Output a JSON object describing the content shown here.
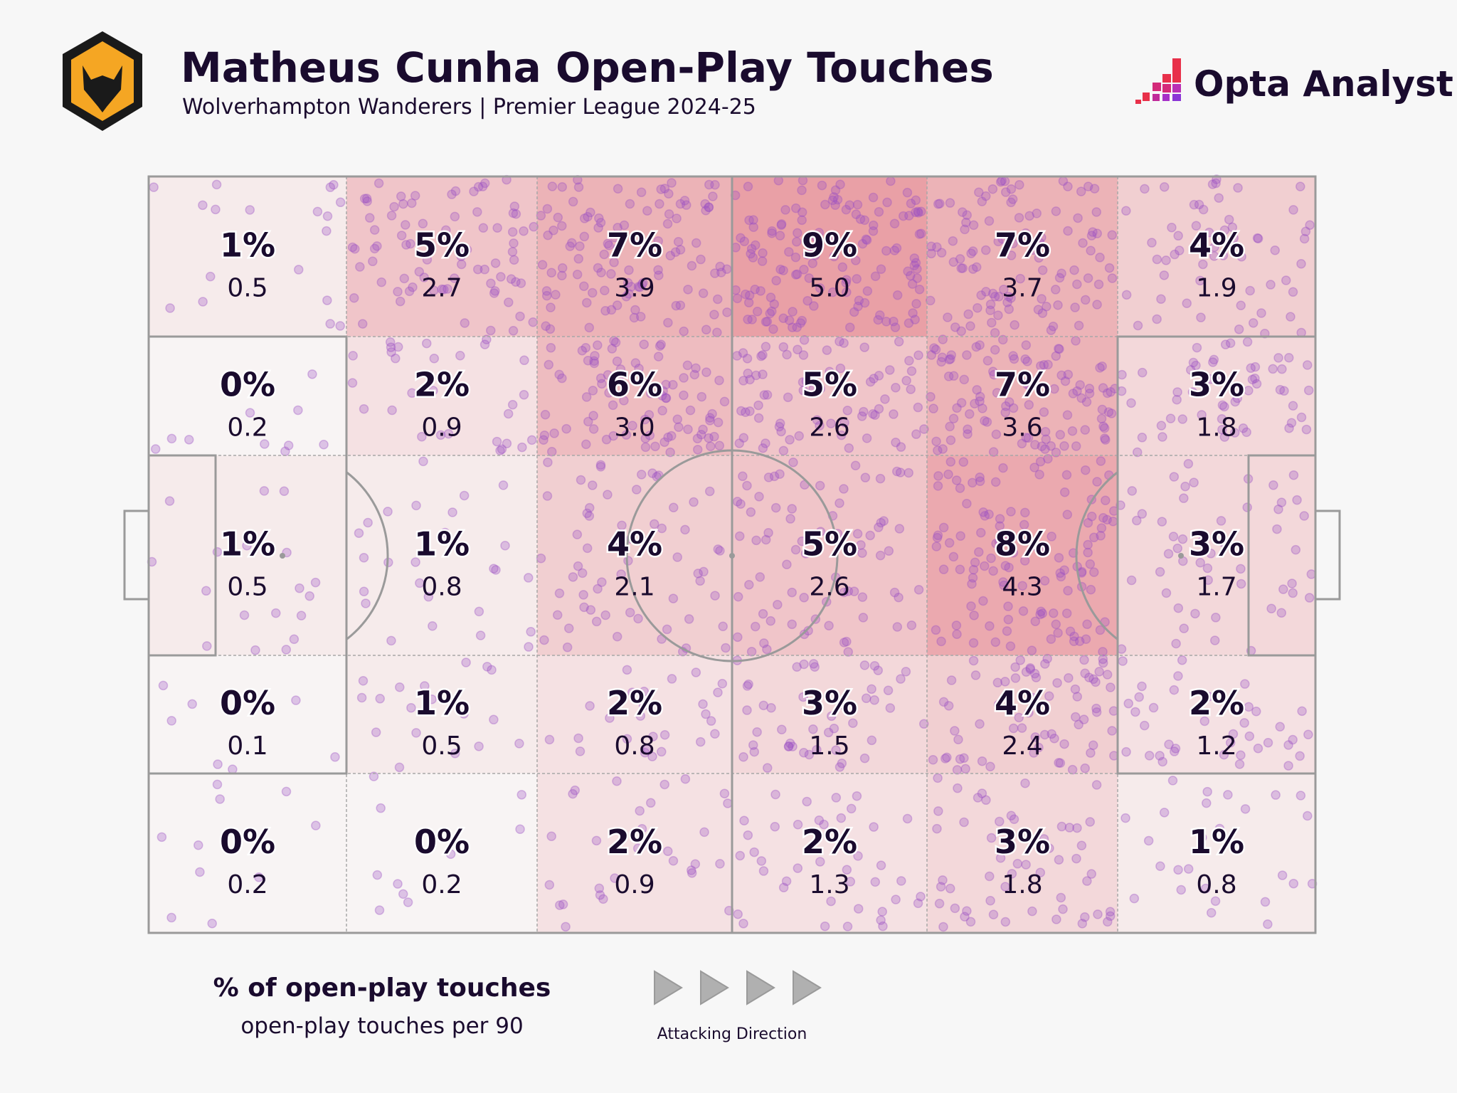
{
  "header": {
    "title": "Matheus Cunha Open-Play Touches",
    "subtitle": "Wolverhampton Wanderers | Premier League 2024-25",
    "club_crest": "wolves-crest",
    "brand": "Opta Analyst"
  },
  "chart_data": {
    "type": "heatmap",
    "title": "Matheus Cunha Open-Play Touches",
    "subtitle": "Wolverhampton Wanderers | Premier League 2024-25",
    "grid": "5 rows x 6 columns over a football pitch, attacking left to right",
    "cells": [
      [
        {
          "pct": "1%",
          "per90": "0.5"
        },
        {
          "pct": "5%",
          "per90": "2.7"
        },
        {
          "pct": "7%",
          "per90": "3.9"
        },
        {
          "pct": "9%",
          "per90": "5.0"
        },
        {
          "pct": "7%",
          "per90": "3.7"
        },
        {
          "pct": "4%",
          "per90": "1.9"
        }
      ],
      [
        {
          "pct": "0%",
          "per90": "0.2"
        },
        {
          "pct": "2%",
          "per90": "0.9"
        },
        {
          "pct": "6%",
          "per90": "3.0"
        },
        {
          "pct": "5%",
          "per90": "2.6"
        },
        {
          "pct": "7%",
          "per90": "3.6"
        },
        {
          "pct": "3%",
          "per90": "1.8"
        }
      ],
      [
        {
          "pct": "1%",
          "per90": "0.5"
        },
        {
          "pct": "1%",
          "per90": "0.8"
        },
        {
          "pct": "4%",
          "per90": "2.1"
        },
        {
          "pct": "5%",
          "per90": "2.6"
        },
        {
          "pct": "8%",
          "per90": "4.3"
        },
        {
          "pct": "3%",
          "per90": "1.7"
        }
      ],
      [
        {
          "pct": "0%",
          "per90": "0.1"
        },
        {
          "pct": "1%",
          "per90": "0.5"
        },
        {
          "pct": "2%",
          "per90": "0.8"
        },
        {
          "pct": "3%",
          "per90": "1.5"
        },
        {
          "pct": "4%",
          "per90": "2.4"
        },
        {
          "pct": "2%",
          "per90": "1.2"
        }
      ],
      [
        {
          "pct": "0%",
          "per90": "0.2"
        },
        {
          "pct": "0%",
          "per90": "0.2"
        },
        {
          "pct": "2%",
          "per90": "0.9"
        },
        {
          "pct": "2%",
          "per90": "1.3"
        },
        {
          "pct": "3%",
          "per90": "1.8"
        },
        {
          "pct": "1%",
          "per90": "0.8"
        }
      ]
    ],
    "color_scale": {
      "low": "#f8f4f4",
      "high": "#e9a0a6"
    },
    "dot_color": "#9b4fc4"
  },
  "legend": {
    "primary": "% of open-play touches",
    "secondary": "open-play touches per 90",
    "direction_label": "Attacking Direction",
    "direction_icon": "play-arrow-icon"
  }
}
